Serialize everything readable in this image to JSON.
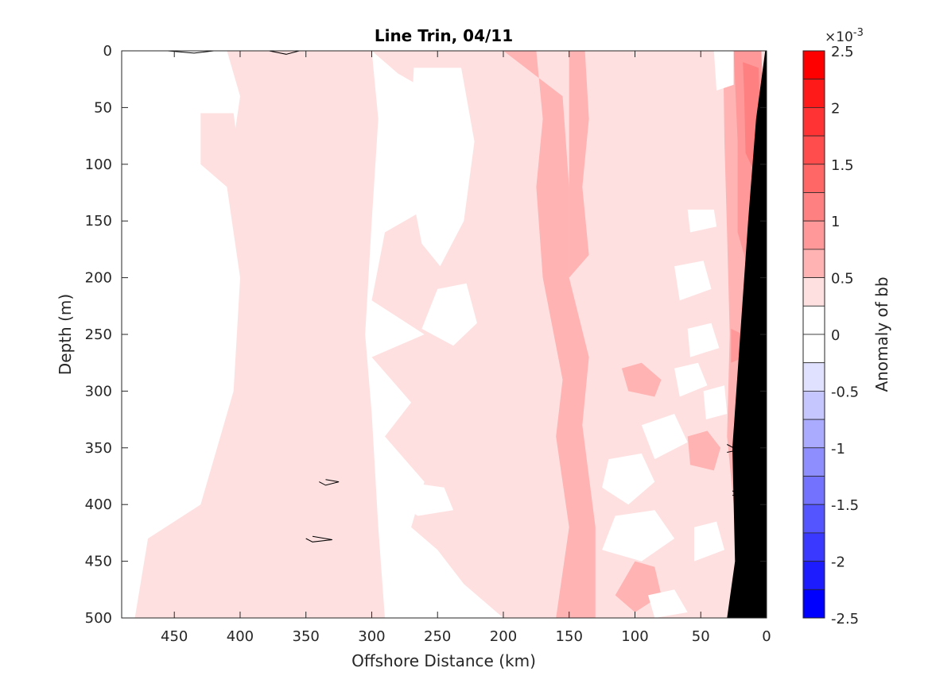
{
  "chart_data": {
    "type": "heatmap",
    "title": "Line Trin, 04/11",
    "xlabel": "Offshore Distance (km)",
    "ylabel": "Depth (m)",
    "xlim": [
      490,
      0
    ],
    "ylim": [
      0,
      500
    ],
    "x_ticks": [
      "450",
      "400",
      "350",
      "300",
      "250",
      "200",
      "150",
      "100",
      "50",
      "0"
    ],
    "y_ticks": [
      "0",
      "50",
      "100",
      "150",
      "200",
      "250",
      "300",
      "350",
      "400",
      "450",
      "500"
    ],
    "colorbar": {
      "label": "Anomaly of bb",
      "exponent_label": "×10",
      "exponent_power": "-3",
      "range": [
        -2.5,
        2.5
      ],
      "tick_labels": [
        "2.5",
        "2",
        "1.5",
        "1",
        "0.5",
        "0",
        "-0.5",
        "-1",
        "-1.5",
        "-2",
        "-2.5"
      ],
      "levels": [
        {
          "from": 2.25,
          "to": 2.5,
          "color": "#ff0000"
        },
        {
          "from": 2.0,
          "to": 2.25,
          "color": "#ff1a1a"
        },
        {
          "from": 1.75,
          "to": 2.0,
          "color": "#ff3333"
        },
        {
          "from": 1.5,
          "to": 1.75,
          "color": "#ff4d4d"
        },
        {
          "from": 1.25,
          "to": 1.5,
          "color": "#ff6666"
        },
        {
          "from": 1.0,
          "to": 1.25,
          "color": "#ff8080"
        },
        {
          "from": 0.75,
          "to": 1.0,
          "color": "#ff9999"
        },
        {
          "from": 0.5,
          "to": 0.75,
          "color": "#ffb3b3"
        },
        {
          "from": 0.25,
          "to": 0.5,
          "color": "#ffe0e0"
        },
        {
          "from": 0.0,
          "to": 0.25,
          "color": "#ffffff"
        },
        {
          "from": -0.25,
          "to": 0.0,
          "color": "#ffffff"
        },
        {
          "from": -0.5,
          "to": -0.25,
          "color": "#e0e0ff"
        },
        {
          "from": -0.75,
          "to": -0.5,
          "color": "#c6c6ff"
        },
        {
          "from": -1.0,
          "to": -0.75,
          "color": "#aaaaff"
        },
        {
          "from": -1.25,
          "to": -1.0,
          "color": "#8e8eff"
        },
        {
          "from": -1.5,
          "to": -1.25,
          "color": "#7272ff"
        },
        {
          "from": -1.75,
          "to": -1.5,
          "color": "#5555ff"
        },
        {
          "from": -2.0,
          "to": -1.75,
          "color": "#3939ff"
        },
        {
          "from": -2.25,
          "to": -2.0,
          "color": "#1c1cff"
        },
        {
          "from": -2.5,
          "to": -2.25,
          "color": "#0000ff"
        }
      ]
    },
    "anomaly_regions": [
      {
        "level": 0.375,
        "points": [
          [
            410,
            0
          ],
          [
            300,
            0
          ],
          [
            295,
            60
          ],
          [
            300,
            150
          ],
          [
            305,
            250
          ],
          [
            300,
            320
          ],
          [
            295,
            420
          ],
          [
            290,
            500
          ],
          [
            480,
            500
          ],
          [
            470,
            430
          ],
          [
            430,
            400
          ],
          [
            405,
            300
          ],
          [
            400,
            200
          ],
          [
            410,
            120
          ],
          [
            400,
            40
          ]
        ]
      },
      {
        "level": 0.375,
        "points": [
          [
            430,
            55
          ],
          [
            405,
            55
          ],
          [
            400,
            100
          ],
          [
            410,
            120
          ],
          [
            430,
            100
          ]
        ]
      },
      {
        "level": 0.375,
        "points": [
          [
            300,
            0
          ],
          [
            0,
            0
          ],
          [
            0,
            500
          ],
          [
            200,
            500
          ],
          [
            230,
            470
          ],
          [
            250,
            440
          ],
          [
            270,
            420
          ],
          [
            260,
            380
          ],
          [
            290,
            340
          ],
          [
            270,
            310
          ],
          [
            300,
            270
          ],
          [
            260,
            250
          ],
          [
            300,
            220
          ],
          [
            290,
            160
          ],
          [
            260,
            140
          ],
          [
            240,
            90
          ],
          [
            250,
            40
          ],
          [
            280,
            20
          ]
        ]
      },
      {
        "level": 0.625,
        "points": [
          [
            200,
            0
          ],
          [
            175,
            0
          ],
          [
            170,
            60
          ],
          [
            175,
            120
          ],
          [
            170,
            200
          ],
          [
            155,
            290
          ],
          [
            160,
            340
          ],
          [
            150,
            420
          ],
          [
            160,
            500
          ],
          [
            130,
            500
          ],
          [
            130,
            420
          ],
          [
            140,
            330
          ],
          [
            135,
            270
          ],
          [
            150,
            200
          ],
          [
            150,
            120
          ],
          [
            155,
            40
          ]
        ]
      },
      {
        "level": 0.625,
        "points": [
          [
            150,
            0
          ],
          [
            138,
            0
          ],
          [
            135,
            60
          ],
          [
            140,
            120
          ],
          [
            135,
            180
          ],
          [
            150,
            200
          ]
        ]
      },
      {
        "level": 0.625,
        "points": [
          [
            110,
            280
          ],
          [
            95,
            275
          ],
          [
            80,
            290
          ],
          [
            85,
            305
          ],
          [
            105,
            300
          ]
        ]
      },
      {
        "level": 0.625,
        "points": [
          [
            100,
            450
          ],
          [
            85,
            455
          ],
          [
            80,
            480
          ],
          [
            100,
            495
          ],
          [
            115,
            480
          ]
        ]
      },
      {
        "level": 0.625,
        "points": [
          [
            60,
            340
          ],
          [
            45,
            335
          ],
          [
            35,
            350
          ],
          [
            40,
            370
          ],
          [
            58,
            365
          ]
        ]
      },
      {
        "level": 0.625,
        "points": [
          [
            33,
            0
          ],
          [
            12,
            0
          ],
          [
            8,
            60
          ],
          [
            12,
            150
          ],
          [
            18,
            250
          ],
          [
            25,
            330
          ],
          [
            25,
            400
          ],
          [
            30,
            340
          ],
          [
            28,
            250
          ],
          [
            30,
            160
          ],
          [
            32,
            80
          ]
        ]
      },
      {
        "level": 0.875,
        "points": [
          [
            25,
            0
          ],
          [
            4,
            0
          ],
          [
            2,
            60
          ],
          [
            6,
            130
          ],
          [
            12,
            200
          ],
          [
            22,
            160
          ],
          [
            22,
            80
          ]
        ]
      },
      {
        "level": 1.125,
        "points": [
          [
            18,
            10
          ],
          [
            6,
            15
          ],
          [
            5,
            60
          ],
          [
            8,
            110
          ],
          [
            16,
            90
          ],
          [
            17,
            40
          ]
        ]
      },
      {
        "level": 0.875,
        "points": [
          [
            27,
            245
          ],
          [
            18,
            250
          ],
          [
            17,
            270
          ],
          [
            27,
            275
          ]
        ]
      }
    ],
    "white_patches": [
      [
        [
          268,
          15
        ],
        [
          232,
          15
        ],
        [
          222,
          80
        ],
        [
          230,
          150
        ],
        [
          248,
          190
        ],
        [
          262,
          170
        ],
        [
          272,
          110
        ]
      ],
      [
        [
          250,
          210
        ],
        [
          228,
          205
        ],
        [
          220,
          240
        ],
        [
          238,
          260
        ],
        [
          262,
          245
        ]
      ],
      [
        [
          275,
          380
        ],
        [
          245,
          385
        ],
        [
          238,
          405
        ],
        [
          265,
          410
        ],
        [
          285,
          395
        ]
      ],
      [
        [
          255,
          470
        ],
        [
          235,
          470
        ],
        [
          232,
          495
        ],
        [
          258,
          495
        ]
      ],
      [
        [
          120,
          360
        ],
        [
          95,
          355
        ],
        [
          85,
          380
        ],
        [
          105,
          400
        ],
        [
          125,
          385
        ]
      ],
      [
        [
          115,
          410
        ],
        [
          85,
          405
        ],
        [
          70,
          430
        ],
        [
          95,
          450
        ],
        [
          125,
          440
        ]
      ],
      [
        [
          95,
          330
        ],
        [
          70,
          320
        ],
        [
          60,
          345
        ],
        [
          85,
          360
        ]
      ],
      [
        [
          70,
          190
        ],
        [
          48,
          185
        ],
        [
          42,
          210
        ],
        [
          66,
          220
        ]
      ],
      [
        [
          60,
          245
        ],
        [
          42,
          240
        ],
        [
          36,
          262
        ],
        [
          58,
          270
        ]
      ],
      [
        [
          55,
          420
        ],
        [
          38,
          415
        ],
        [
          32,
          440
        ],
        [
          55,
          450
        ]
      ],
      [
        [
          70,
          280
        ],
        [
          52,
          275
        ],
        [
          45,
          295
        ],
        [
          66,
          305
        ]
      ],
      [
        [
          40,
          0
        ],
        [
          25,
          0
        ],
        [
          25,
          30
        ],
        [
          38,
          35
        ]
      ],
      [
        [
          60,
          140
        ],
        [
          40,
          140
        ],
        [
          38,
          155
        ],
        [
          58,
          160
        ]
      ],
      [
        [
          48,
          300
        ],
        [
          32,
          295
        ],
        [
          30,
          320
        ],
        [
          46,
          325
        ]
      ],
      [
        [
          90,
          480
        ],
        [
          70,
          475
        ],
        [
          60,
          495
        ],
        [
          85,
          500
        ]
      ]
    ],
    "contour_loops": [
      [
        [
          455,
          0
        ],
        [
          435,
          2
        ],
        [
          420,
          0
        ]
      ],
      [
        [
          378,
          0
        ],
        [
          365,
          3
        ],
        [
          355,
          0
        ]
      ],
      [
        [
          335,
          378
        ],
        [
          325,
          380
        ],
        [
          335,
          383
        ],
        [
          340,
          380
        ]
      ],
      [
        [
          345,
          428
        ],
        [
          330,
          431
        ],
        [
          345,
          433
        ],
        [
          350,
          430
        ]
      ],
      [
        [
          30,
          347
        ],
        [
          22,
          352
        ],
        [
          30,
          354
        ]
      ],
      [
        [
          26,
          388
        ],
        [
          20,
          390
        ],
        [
          26,
          392
        ]
      ]
    ],
    "seafloor": [
      [
        0,
        0
      ],
      [
        0,
        500
      ],
      [
        30,
        500
      ],
      [
        24,
        450
      ],
      [
        26,
        350
      ],
      [
        20,
        250
      ],
      [
        14,
        150
      ],
      [
        8,
        60
      ],
      [
        1,
        0
      ]
    ]
  }
}
